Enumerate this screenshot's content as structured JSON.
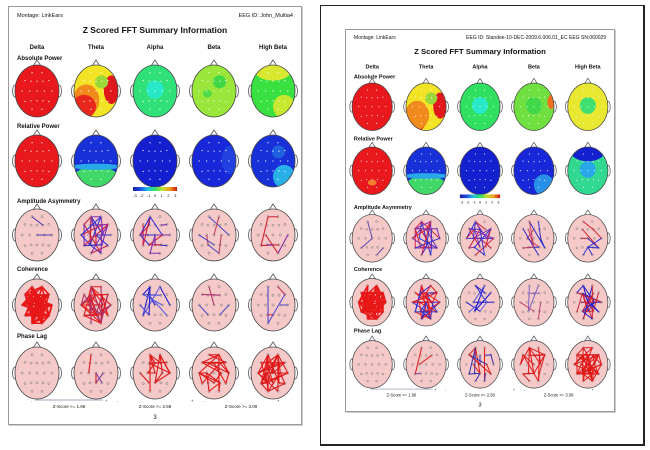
{
  "bands": [
    "Delta",
    "Theta",
    "Alpha",
    "Beta",
    "High Beta"
  ],
  "row_labels": [
    "Absolute Power",
    "Relative Power",
    "Amplitude Asymmetry",
    "Coherence",
    "Phase Lag"
  ],
  "colorbar": {
    "ticks": [
      "-3",
      "-2",
      "-1",
      "0",
      "1",
      "2",
      "3"
    ],
    "colors": [
      "#1a1aa0",
      "#2050e0",
      "#20c0e0",
      "#30e070",
      "#c0e030",
      "#f0a020",
      "#d01010"
    ]
  },
  "zscore_legends": [
    "Z-Score >= 1.96",
    "Z-Score >= 2.58",
    "Z-Score >= 3.09"
  ],
  "pages": [
    {
      "montage": "Montage:  LinkEars",
      "eeg_id": "EEG ID:  John_Multia4",
      "title": "Z Scored FFT Summary Information",
      "page_number": "3",
      "absolute_power": [
        {
          "base": "#e8181c",
          "regions": []
        },
        {
          "base": "#f2e424",
          "regions": [
            {
              "zone": "left-back",
              "color": "#f08a1c"
            },
            {
              "zone": "bottom-left",
              "color": "#e8281c"
            },
            {
              "zone": "right",
              "color": "#e0181c"
            },
            {
              "zone": "front-right",
              "color": "#9ad83a"
            }
          ]
        },
        {
          "base": "#30e078",
          "regions": [
            {
              "zone": "center",
              "color": "#28e8c8"
            }
          ]
        },
        {
          "base": "#9ae63a",
          "regions": [
            {
              "zone": "front-right",
              "color": "#40d848"
            },
            {
              "zone": "center-left",
              "color": "#50dc48"
            }
          ]
        },
        {
          "base": "#38e040",
          "regions": [
            {
              "zone": "front",
              "color": "#d8e830"
            },
            {
              "zone": "bottom-right",
              "color": "#c8e830"
            }
          ]
        }
      ],
      "relative_power": [
        {
          "base": "#e8181c",
          "regions": []
        },
        {
          "base": "#1830d8",
          "regions": [
            {
              "zone": "back",
              "color": "#40d868"
            },
            {
              "zone": "center-band",
              "color": "#28a8e8"
            }
          ]
        },
        {
          "base": "#1420d0",
          "regions": []
        },
        {
          "base": "#1828d8",
          "regions": [
            {
              "zone": "right",
              "color": "#2040e0"
            }
          ]
        },
        {
          "base": "#1830d8",
          "regions": [
            {
              "zone": "bottom-right",
              "color": "#28b0e8"
            },
            {
              "zone": "front-right",
              "color": "#2060e0"
            }
          ]
        }
      ],
      "amplitude_asymmetry": [
        {
          "colors": [
            "#5040b0"
          ],
          "count": 3
        },
        {
          "colors": [
            "#3030d0",
            "#d02040",
            "#8030b0"
          ],
          "count": 28
        },
        {
          "colors": [
            "#3030d0",
            "#d02040",
            "#8030b0"
          ],
          "count": 20
        },
        {
          "colors": [
            "#5050c0",
            "#c04060"
          ],
          "count": 6
        },
        {
          "colors": [
            "#d02030",
            "#8030a0"
          ],
          "count": 7
        }
      ],
      "coherence": [
        {
          "colors": [
            "#e81818"
          ],
          "count": 90
        },
        {
          "colors": [
            "#e81818",
            "#b03060"
          ],
          "count": 45
        },
        {
          "colors": [
            "#2020d0",
            "#6060e0"
          ],
          "count": 14
        },
        {
          "colors": [
            "#b03070",
            "#5050c0"
          ],
          "count": 5
        },
        {
          "colors": [
            "#5050d0",
            "#d03050"
          ],
          "count": 6
        }
      ],
      "phase_lag": [
        {
          "colors": [
            "#e01818"
          ],
          "count": 0
        },
        {
          "colors": [
            "#e01818",
            "#8040a0"
          ],
          "count": 5
        },
        {
          "colors": [
            "#e01818"
          ],
          "count": 18
        },
        {
          "colors": [
            "#e01818"
          ],
          "count": 26
        },
        {
          "colors": [
            "#e01818"
          ],
          "count": 45
        }
      ]
    },
    {
      "montage": "Montage:  LinkEars",
      "eeg_id": "EEG ID:  Standee-10-DEC-2009.6.006.01_EC EEG SN:060029",
      "title": "Z Scored FFT Summary Information",
      "page_number": "3",
      "absolute_power": [
        {
          "base": "#e8181c",
          "regions": []
        },
        {
          "base": "#f2e424",
          "regions": [
            {
              "zone": "bottom-left",
              "color": "#e8281c"
            },
            {
              "zone": "left-back",
              "color": "#f08a1c"
            },
            {
              "zone": "right",
              "color": "#e0181c"
            },
            {
              "zone": "front-right",
              "color": "#9ad83a"
            }
          ]
        },
        {
          "base": "#30e060",
          "regions": [
            {
              "zone": "center",
              "color": "#28e8c8"
            }
          ]
        },
        {
          "base": "#70e040",
          "regions": [
            {
              "zone": "right-edge",
              "color": "#f07020"
            },
            {
              "zone": "center",
              "color": "#40d848"
            }
          ]
        },
        {
          "base": "#e8e830",
          "regions": [
            {
              "zone": "center",
              "color": "#40e070"
            }
          ]
        }
      ],
      "relative_power": [
        {
          "base": "#e8181c",
          "regions": [
            {
              "zone": "center-spot",
              "color": "#f08030"
            }
          ]
        },
        {
          "base": "#1830d8",
          "regions": [
            {
              "zone": "back",
              "color": "#40d868"
            },
            {
              "zone": "center-band",
              "color": "#28a8e8"
            }
          ]
        },
        {
          "base": "#1420d0",
          "regions": []
        },
        {
          "base": "#1828d8",
          "regions": [
            {
              "zone": "bottom-right",
              "color": "#2890e8"
            }
          ]
        },
        {
          "base": "#30d890",
          "regions": [
            {
              "zone": "center",
              "color": "#28a8e8"
            },
            {
              "zone": "front",
              "color": "#1420d0"
            }
          ]
        }
      ],
      "amplitude_asymmetry": [
        {
          "colors": [
            "#6050b0"
          ],
          "count": 3
        },
        {
          "colors": [
            "#3030d0",
            "#d02040",
            "#8030b0"
          ],
          "count": 28
        },
        {
          "colors": [
            "#3030d0",
            "#d02040",
            "#8030b0"
          ],
          "count": 24
        },
        {
          "colors": [
            "#3030d0",
            "#c04060"
          ],
          "count": 10
        },
        {
          "colors": [
            "#d02030",
            "#3030d0"
          ],
          "count": 10
        }
      ],
      "coherence": [
        {
          "colors": [
            "#e81818"
          ],
          "count": 90
        },
        {
          "colors": [
            "#e81818",
            "#3030d0"
          ],
          "count": 45
        },
        {
          "colors": [
            "#2020d0",
            "#6060e0"
          ],
          "count": 14
        },
        {
          "colors": [
            "#8060c0",
            "#c04070"
          ],
          "count": 5
        },
        {
          "colors": [
            "#2020d0",
            "#d02030"
          ],
          "count": 24
        }
      ],
      "phase_lag": [
        {
          "colors": [
            "#e01818"
          ],
          "count": 0
        },
        {
          "colors": [
            "#e01818",
            "#8040a0"
          ],
          "count": 4
        },
        {
          "colors": [
            "#e01818",
            "#3030b0"
          ],
          "count": 20
        },
        {
          "colors": [
            "#e01818"
          ],
          "count": 24
        },
        {
          "colors": [
            "#e01818"
          ],
          "count": 50
        }
      ]
    }
  ]
}
